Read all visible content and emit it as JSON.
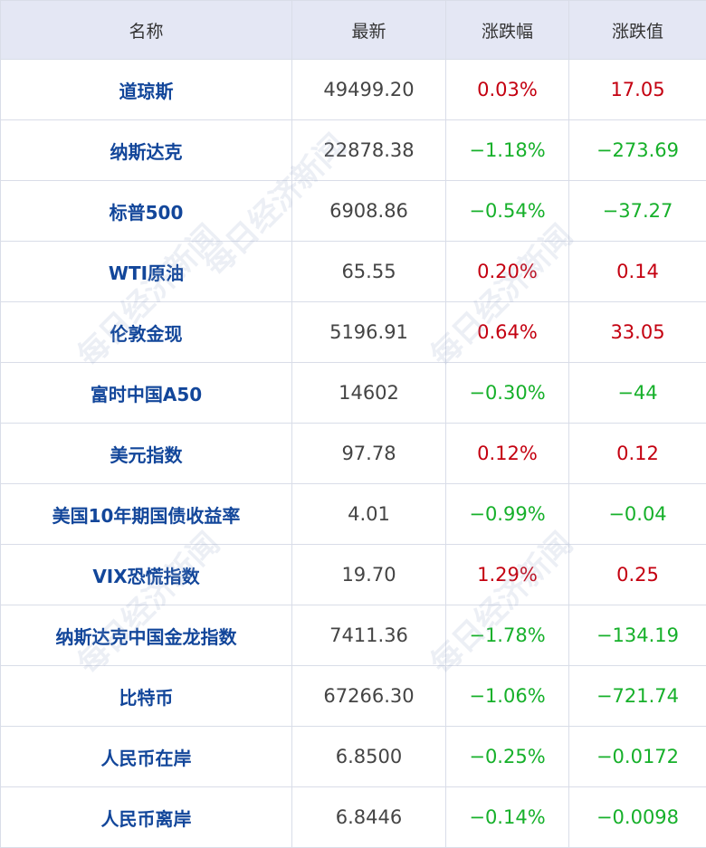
{
  "watermark": "每日经济新闻",
  "header": {
    "columns": [
      "名称",
      "最新",
      "涨跌幅",
      "涨跌值"
    ]
  },
  "table": {
    "rows": [
      [
        "道琼斯",
        "49499.20",
        "0.03%",
        "17.05"
      ],
      [
        "纳斯达克",
        "22878.38",
        "−1.18%",
        "−273.69"
      ],
      [
        "标普500",
        "6908.86",
        "−0.54%",
        "−37.27"
      ],
      [
        "WTI原油",
        "65.55",
        "0.20%",
        "0.14"
      ],
      [
        "伦敦金现",
        "5196.91",
        "0.64%",
        "33.05"
      ],
      [
        "富时中国A50",
        "14602",
        "−0.30%",
        "−44"
      ],
      [
        "美元指数",
        "97.78",
        "0.12%",
        "0.12"
      ],
      [
        "美国10年期国债收益率",
        "4.01",
        "−0.99%",
        "−0.04"
      ],
      [
        "VIX恐慌指数",
        "19.70",
        "1.29%",
        "0.25"
      ],
      [
        "纳斯达克中国金龙指数",
        "7411.36",
        "−1.78%",
        "−134.19"
      ],
      [
        "比特币",
        "67266.30",
        "−1.06%",
        "−721.74"
      ],
      [
        "人民币在岸",
        "6.8500",
        "−0.25%",
        "−0.0172"
      ],
      [
        "人民币离岸",
        "6.8446",
        "−0.14%",
        "−0.0098"
      ]
    ]
  }
}
